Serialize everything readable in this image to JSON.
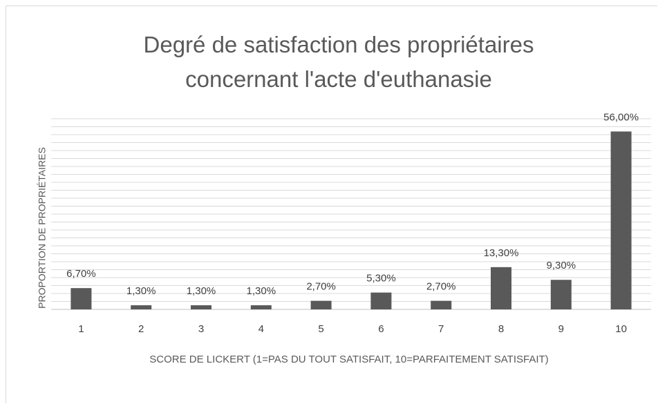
{
  "chart_data": {
    "type": "bar",
    "title": "Degré de satisfaction des propriétaires concernant l'acte d'euthanasie",
    "x_label": "SCORE DE LICKERT (1=PAS DU TOUT SATISFAIT, 10=PARFAITEMENT SATISFAIT)",
    "y_label": "PROPORTION DE PROPRIÉTAIRES",
    "categories": [
      "1",
      "2",
      "3",
      "4",
      "5",
      "6",
      "7",
      "8",
      "9",
      "10"
    ],
    "values": [
      6.7,
      1.3,
      1.3,
      1.3,
      2.7,
      5.3,
      2.7,
      13.3,
      9.3,
      56
    ],
    "value_labels": [
      "6,70%",
      "1,30%",
      "1,30%",
      "1,30%",
      "2,70%",
      "5,30%",
      "2,70%",
      "13,30%",
      "9,30%",
      "56,00%"
    ],
    "color": "#595959",
    "ylim": [
      0,
      60
    ],
    "yticks": [
      0,
      2.5,
      5,
      7.5,
      10,
      12.5,
      15,
      17.5,
      20,
      22.5,
      25,
      27.5,
      30,
      32.5,
      35,
      37.5,
      40,
      42.5,
      45,
      47.5,
      50,
      52.5,
      55,
      57.5,
      60
    ],
    "ytick_labels": false,
    "grid": true
  }
}
